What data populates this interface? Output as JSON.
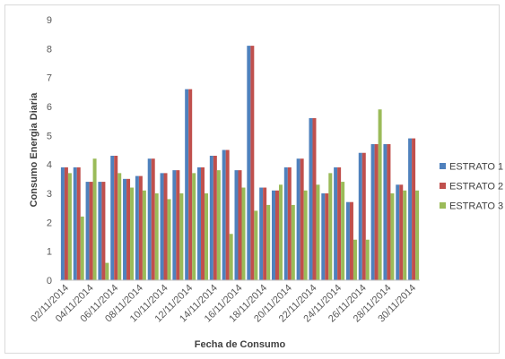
{
  "chart_data": {
    "type": "bar",
    "xlabel": "Fecha de Consumo",
    "ylabel": "Consumo Energia Diaria",
    "ylim": [
      0,
      9
    ],
    "yticks": [
      "0",
      "1",
      "2",
      "3",
      "4",
      "5",
      "6",
      "7",
      "8",
      "9"
    ],
    "grid": false,
    "legend_position": "right",
    "categories": [
      "02/11/2014",
      "03/11/2014",
      "04/11/2014",
      "05/11/2014",
      "06/11/2014",
      "07/11/2014",
      "08/11/2014",
      "09/11/2014",
      "10/11/2014",
      "11/11/2014",
      "12/11/2014",
      "13/11/2014",
      "14/11/2014",
      "15/11/2014",
      "16/11/2014",
      "17/11/2014",
      "18/11/2014",
      "19/11/2014",
      "20/11/2014",
      "21/11/2014",
      "22/11/2014",
      "23/11/2014",
      "24/11/2014",
      "25/11/2014",
      "26/11/2014",
      "27/11/2014",
      "28/11/2014",
      "29/11/2014",
      "30/11/2014"
    ],
    "tick_labels": [
      "02/11/2014",
      "04/11/2014",
      "06/11/2014",
      "08/11/2014",
      "10/11/2014",
      "12/11/2014",
      "14/11/2014",
      "16/11/2014",
      "18/11/2014",
      "20/11/2014",
      "22/11/2014",
      "24/11/2014",
      "26/11/2014",
      "28/11/2014",
      "30/11/2014"
    ],
    "series": [
      {
        "name": "ESTRATO 1",
        "color": "#4f81bd",
        "values": [
          3.9,
          3.9,
          3.4,
          3.4,
          4.3,
          3.5,
          3.6,
          4.2,
          3.7,
          3.8,
          6.6,
          3.9,
          4.3,
          4.5,
          3.8,
          8.1,
          3.2,
          3.1,
          3.9,
          4.2,
          5.6,
          3.0,
          3.9,
          2.7,
          4.4,
          4.7,
          4.7,
          3.3,
          4.9
        ]
      },
      {
        "name": "ESTRATO 2",
        "color": "#c0504d",
        "values": [
          3.9,
          3.9,
          3.4,
          3.4,
          4.3,
          3.5,
          3.6,
          4.2,
          3.7,
          3.8,
          6.6,
          3.9,
          4.3,
          4.5,
          3.8,
          8.1,
          3.2,
          3.1,
          3.9,
          4.2,
          5.6,
          3.0,
          3.9,
          2.7,
          4.4,
          4.7,
          4.7,
          3.3,
          4.9
        ]
      },
      {
        "name": "ESTRATO 3",
        "color": "#9bbb59",
        "values": [
          3.7,
          2.2,
          4.2,
          0.6,
          3.7,
          3.2,
          3.1,
          3.0,
          2.8,
          3.0,
          3.7,
          3.0,
          3.8,
          1.6,
          3.2,
          2.4,
          2.6,
          3.3,
          2.6,
          3.1,
          3.3,
          3.7,
          3.4,
          1.4,
          1.4,
          5.9,
          3.0,
          3.1,
          3.1
        ]
      }
    ]
  }
}
